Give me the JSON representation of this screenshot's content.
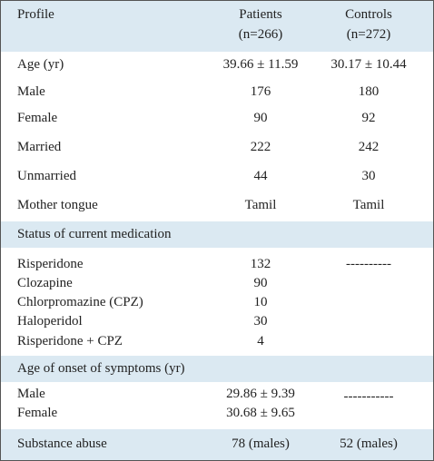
{
  "table": {
    "header": {
      "profile": "Profile",
      "patients": [
        "Patients",
        "(n=266)"
      ],
      "controls": [
        "Controls",
        "(n=272)"
      ]
    },
    "demographics": [
      [
        "Age (yr)",
        "39.66 ± 11.59",
        "30.17 ± 10.44"
      ],
      [
        "Male",
        "176",
        "180"
      ],
      [
        "Female",
        "90",
        "92"
      ],
      [
        "Married",
        "222",
        "242"
      ],
      [
        "Unmarried",
        "44",
        "30"
      ],
      [
        "Mother tongue",
        "Tamil",
        "Tamil"
      ]
    ],
    "medication": {
      "title": "Status of current medication",
      "rows": [
        [
          "Risperidone",
          "132"
        ],
        [
          "Clozapine",
          "90"
        ],
        [
          "Chlorpromazine (CPZ)",
          "10"
        ],
        [
          "Haloperidol",
          "30"
        ],
        [
          "Risperidone + CPZ",
          "4"
        ]
      ],
      "controls": "----------"
    },
    "onset": {
      "title": "Age of onset of symptoms (yr)",
      "rows": [
        [
          "Male",
          "29.86 ± 9.39"
        ],
        [
          "Female",
          "30.68 ± 9.65"
        ]
      ],
      "controls": "-----------"
    },
    "substance": [
      "Substance abuse",
      "78 (males)",
      "52 (males)"
    ]
  }
}
